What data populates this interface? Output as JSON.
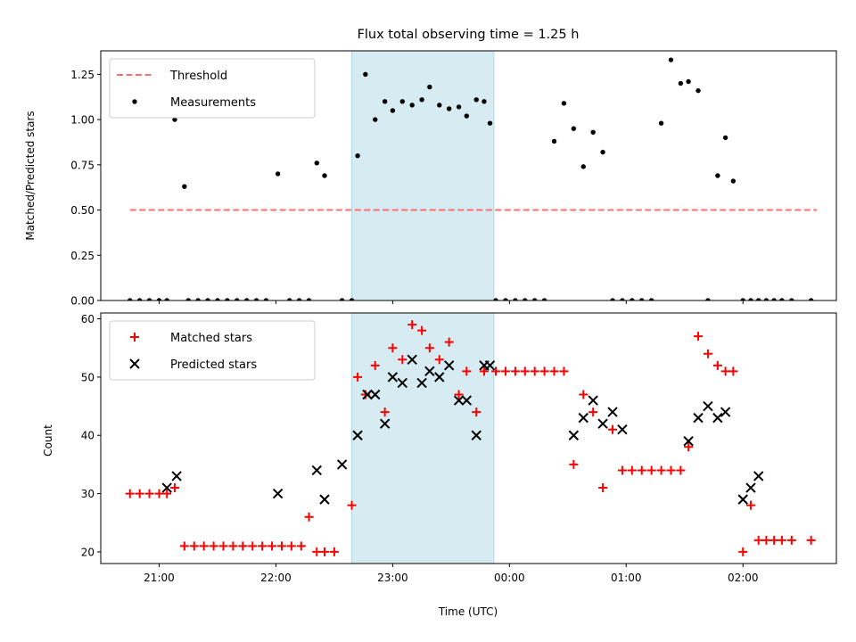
{
  "chart_data": [
    {
      "type": "scatter",
      "title": "Flux total observing time = 1.25 h",
      "ylabel": "Matched/Predicted stars",
      "xlabel": "",
      "xlim": [
        "20:30",
        "02:48"
      ],
      "ylim": [
        0,
        1.38
      ],
      "yticks": [
        "0.00",
        "0.25",
        "0.50",
        "0.75",
        "1.00",
        "1.25"
      ],
      "xticks": [
        "21:00",
        "22:00",
        "23:00",
        "00:00",
        "01:00",
        "02:00"
      ],
      "shaded_region": {
        "start": "22:39",
        "end": "23:52",
        "color": "#add8e6"
      },
      "legend_position": "upper left",
      "series": [
        {
          "name": "Threshold",
          "kind": "line",
          "style": "dashed",
          "color": "#ff6f6f",
          "x": [
            "20:45",
            "02:38"
          ],
          "y": [
            0.5,
            0.5
          ]
        },
        {
          "name": "Measurements",
          "kind": "scatter",
          "marker": "dot",
          "color": "#000000",
          "x": [
            "20:45",
            "20:50",
            "20:55",
            "21:00",
            "21:04",
            "21:08",
            "21:13",
            "21:15",
            "21:20",
            "21:25",
            "21:30",
            "21:35",
            "21:40",
            "21:45",
            "21:50",
            "21:55",
            "22:01",
            "22:07",
            "22:12",
            "22:17",
            "22:21",
            "22:25",
            "22:34",
            "22:39",
            "22:42",
            "22:46",
            "22:51",
            "22:56",
            "23:00",
            "23:05",
            "23:10",
            "23:15",
            "23:19",
            "23:24",
            "23:29",
            "23:34",
            "23:38",
            "23:43",
            "23:47",
            "23:50",
            "23:53",
            "23:58",
            "00:03",
            "00:08",
            "00:13",
            "00:18",
            "00:23",
            "00:28",
            "00:33",
            "00:38",
            "00:43",
            "00:48",
            "00:53",
            "00:58",
            "01:03",
            "01:08",
            "01:13",
            "01:18",
            "01:23",
            "01:28",
            "01:32",
            "01:37",
            "01:42",
            "01:47",
            "01:51",
            "01:55",
            "02:00",
            "02:04",
            "02:08",
            "02:12",
            "02:16",
            "02:20",
            "02:25",
            "02:35"
          ],
          "y": [
            0,
            0,
            0,
            0,
            0,
            1.0,
            0.63,
            0,
            0,
            0,
            0,
            0,
            0,
            0,
            0,
            0,
            0.7,
            0,
            0,
            0,
            0.76,
            0.69,
            0,
            0,
            0.8,
            1.25,
            1.0,
            1.1,
            1.05,
            1.1,
            1.08,
            1.11,
            1.18,
            1.08,
            1.06,
            1.07,
            1.02,
            1.11,
            1.1,
            0.98,
            0,
            0,
            0,
            0,
            0,
            0,
            0.88,
            1.09,
            0.95,
            0.74,
            0.93,
            0.82,
            0,
            0,
            0,
            0,
            0,
            0.98,
            1.33,
            1.2,
            1.21,
            1.16,
            0,
            0.69,
            0.9,
            0.66,
            0,
            0,
            0,
            0,
            0,
            0,
            0,
            0
          ]
        }
      ]
    },
    {
      "type": "scatter",
      "title": "",
      "ylabel": "Count",
      "xlabel": "Time (UTC)",
      "xlim": [
        "20:30",
        "02:48"
      ],
      "ylim": [
        18,
        61
      ],
      "yticks": [
        "20",
        "30",
        "40",
        "50",
        "60"
      ],
      "xticks": [
        "21:00",
        "22:00",
        "23:00",
        "00:00",
        "01:00",
        "02:00"
      ],
      "shaded_region": {
        "start": "22:39",
        "end": "23:52",
        "color": "#add8e6"
      },
      "legend_position": "upper left",
      "series": [
        {
          "name": "Matched stars",
          "kind": "scatter",
          "marker": "plus",
          "color": "#ff0000",
          "x": [
            "20:45",
            "20:50",
            "20:55",
            "21:00",
            "21:04",
            "21:08",
            "21:13",
            "21:18",
            "21:23",
            "21:28",
            "21:33",
            "21:38",
            "21:43",
            "21:48",
            "21:53",
            "21:58",
            "22:03",
            "22:08",
            "22:13",
            "22:17",
            "22:21",
            "22:25",
            "22:30",
            "22:39",
            "22:42",
            "22:46",
            "22:51",
            "22:56",
            "23:00",
            "23:05",
            "23:10",
            "23:15",
            "23:19",
            "23:24",
            "23:29",
            "23:34",
            "23:38",
            "23:43",
            "23:47",
            "23:53",
            "23:58",
            "00:03",
            "00:08",
            "00:13",
            "00:18",
            "00:23",
            "00:28",
            "00:33",
            "00:38",
            "00:43",
            "00:48",
            "00:53",
            "00:58",
            "01:03",
            "01:08",
            "01:13",
            "01:18",
            "01:23",
            "01:28",
            "01:32",
            "01:37",
            "01:42",
            "01:47",
            "01:51",
            "01:55",
            "02:00",
            "02:04",
            "02:08",
            "02:12",
            "02:16",
            "02:20",
            "02:25",
            "02:35"
          ],
          "y": [
            30,
            30,
            30,
            30,
            30,
            31,
            21,
            21,
            21,
            21,
            21,
            21,
            21,
            21,
            21,
            21,
            21,
            21,
            21,
            26,
            20,
            20,
            20,
            28,
            50,
            47,
            52,
            44,
            55,
            53,
            59,
            58,
            55,
            53,
            56,
            47,
            51,
            44,
            51,
            51,
            51,
            51,
            51,
            51,
            51,
            51,
            51,
            35,
            47,
            44,
            31,
            41,
            34,
            34,
            34,
            34,
            34,
            34,
            34,
            38,
            57,
            54,
            52,
            51,
            51,
            20,
            28,
            22,
            22,
            22,
            22,
            22,
            22
          ]
        },
        {
          "name": "Predicted stars",
          "kind": "scatter",
          "marker": "x",
          "color": "#000000",
          "x": [
            "21:04",
            "21:09",
            "22:01",
            "22:21",
            "22:25",
            "22:34",
            "22:42",
            "22:47",
            "22:51",
            "22:56",
            "23:00",
            "23:05",
            "23:10",
            "23:15",
            "23:19",
            "23:24",
            "23:29",
            "23:34",
            "23:38",
            "23:43",
            "23:47",
            "23:50",
            "00:33",
            "00:38",
            "00:43",
            "00:48",
            "00:53",
            "00:58",
            "01:32",
            "01:37",
            "01:42",
            "01:47",
            "01:51",
            "02:00",
            "02:04",
            "02:08"
          ],
          "y": [
            31,
            33,
            30,
            34,
            29,
            35,
            40,
            47,
            47,
            42,
            50,
            49,
            53,
            49,
            51,
            50,
            52,
            46,
            46,
            40,
            52,
            52,
            40,
            43,
            46,
            42,
            44,
            41,
            39,
            43,
            45,
            43,
            44,
            29,
            31,
            33
          ]
        }
      ]
    }
  ]
}
